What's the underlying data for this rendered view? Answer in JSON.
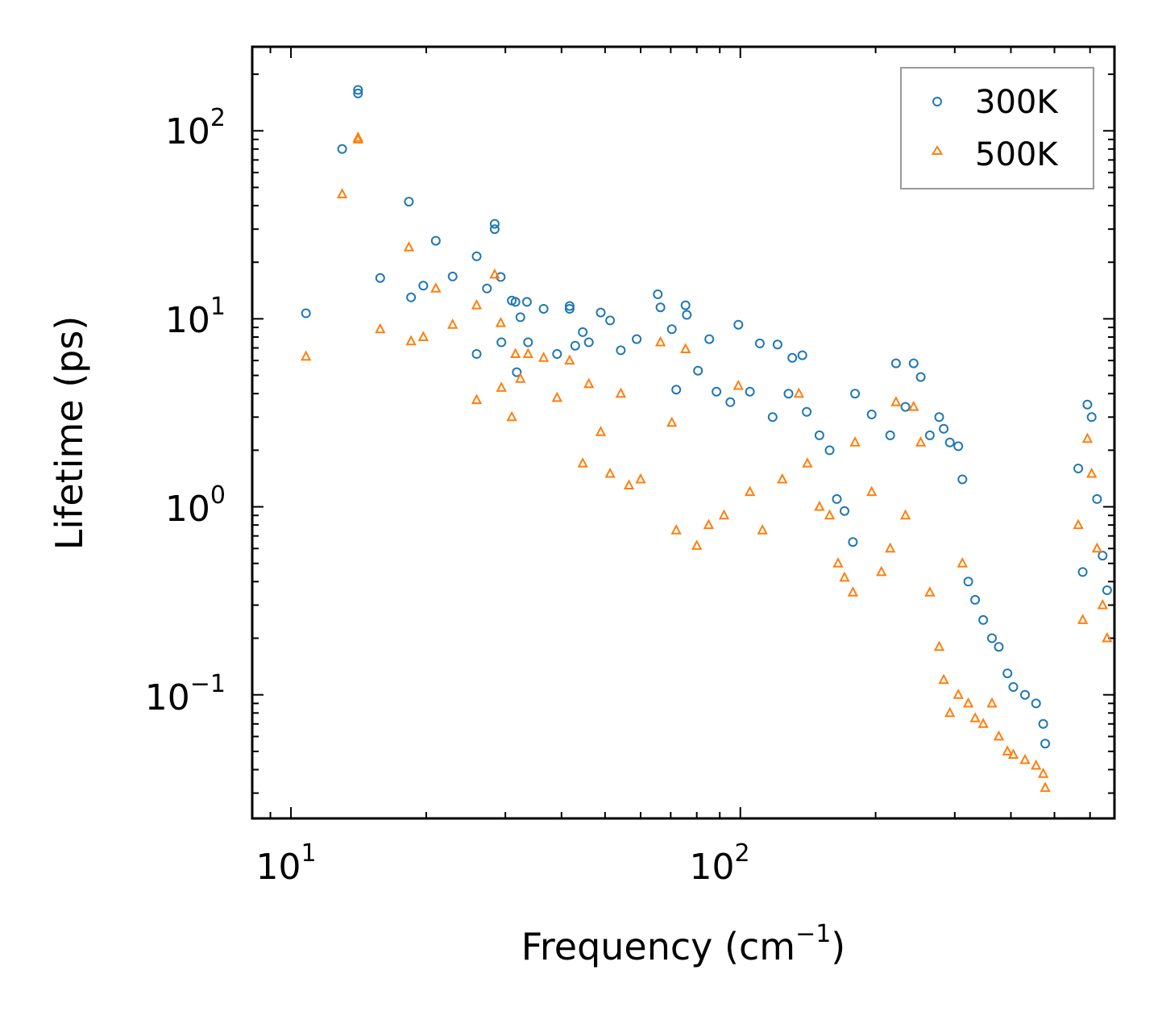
{
  "chart_data": {
    "type": "scatter",
    "title": "",
    "xlabel": "Frequency (cm",
    "xlabel_sup": "−1",
    "xlabel_tail": ")",
    "ylabel": "Lifetime (ps)",
    "xscale": "log",
    "yscale": "log",
    "xlim": [
      8.2,
      680
    ],
    "ylim": [
      0.022,
      280
    ],
    "x_ticks": [
      {
        "base": "10",
        "exp": "1",
        "value": 10
      },
      {
        "base": "10",
        "exp": "2",
        "value": 100
      }
    ],
    "y_ticks": [
      {
        "base": "10",
        "exp": "2",
        "value": 100
      },
      {
        "base": "10",
        "exp": "1",
        "value": 10
      },
      {
        "base": "10",
        "exp": "0",
        "value": 1
      },
      {
        "base": "10",
        "exp": "−1",
        "value": 0.1
      }
    ],
    "legend_position": "top-right",
    "series": [
      {
        "name": "300K",
        "marker": "circle",
        "color": "#1f77b4",
        "points": [
          [
            10.8,
            10.7
          ],
          [
            13.0,
            80
          ],
          [
            14.1,
            165
          ],
          [
            14.1,
            158
          ],
          [
            15.8,
            16.5
          ],
          [
            18.3,
            42
          ],
          [
            18.5,
            13.0
          ],
          [
            19.7,
            15.0
          ],
          [
            21.0,
            26
          ],
          [
            22.9,
            16.8
          ],
          [
            25.9,
            21.5
          ],
          [
            25.9,
            6.5
          ],
          [
            27.3,
            14.5
          ],
          [
            28.4,
            32
          ],
          [
            28.4,
            30
          ],
          [
            29.3,
            16.7
          ],
          [
            29.4,
            7.5
          ],
          [
            31.0,
            12.5
          ],
          [
            31.6,
            12.3
          ],
          [
            32.4,
            10.2
          ],
          [
            33.5,
            12.3
          ],
          [
            33.7,
            7.5
          ],
          [
            31.8,
            5.2
          ],
          [
            36.5,
            11.3
          ],
          [
            39.1,
            6.5
          ],
          [
            41.7,
            11.7
          ],
          [
            41.7,
            11.3
          ],
          [
            42.9,
            7.2
          ],
          [
            44.6,
            8.5
          ],
          [
            46.0,
            7.5
          ],
          [
            48.9,
            10.8
          ],
          [
            51.3,
            9.8
          ],
          [
            54.2,
            6.8
          ],
          [
            58.8,
            7.8
          ],
          [
            65.5,
            13.5
          ],
          [
            66.4,
            11.5
          ],
          [
            70.4,
            8.8
          ],
          [
            75.5,
            11.8
          ],
          [
            76.0,
            10.5
          ],
          [
            85.3,
            7.8
          ],
          [
            99.0,
            9.3
          ],
          [
            110.5,
            7.4
          ],
          [
            121.0,
            7.3
          ],
          [
            130.5,
            6.2
          ],
          [
            137.4,
            6.4
          ],
          [
            72.0,
            4.2
          ],
          [
            80.5,
            5.3
          ],
          [
            88.5,
            4.1
          ],
          [
            95.0,
            3.6
          ],
          [
            105.0,
            4.1
          ],
          [
            118.0,
            3.0
          ],
          [
            128.0,
            4.0
          ],
          [
            140.5,
            3.2
          ],
          [
            150.0,
            2.4
          ],
          [
            158.0,
            2.0
          ],
          [
            164.0,
            1.1
          ],
          [
            170.5,
            0.95
          ],
          [
            178.0,
            0.65
          ],
          [
            180.0,
            4.0
          ],
          [
            196.0,
            3.1
          ],
          [
            215.5,
            2.4
          ],
          [
            222.0,
            5.8
          ],
          [
            233.0,
            3.4
          ],
          [
            243.0,
            5.8
          ],
          [
            252.0,
            4.9
          ],
          [
            264.0,
            2.4
          ],
          [
            277.0,
            3.0
          ],
          [
            283.5,
            2.6
          ],
          [
            292.5,
            2.2
          ],
          [
            305.5,
            2.1
          ],
          [
            312.0,
            1.4
          ],
          [
            321.5,
            0.4
          ],
          [
            333.0,
            0.32
          ],
          [
            347.0,
            0.25
          ],
          [
            363.0,
            0.2
          ],
          [
            376.0,
            0.18
          ],
          [
            393.0,
            0.13
          ],
          [
            405.0,
            0.11
          ],
          [
            430.0,
            0.1
          ],
          [
            455.0,
            0.09
          ],
          [
            472.0,
            0.07
          ],
          [
            477.0,
            0.055
          ],
          [
            565.0,
            1.6
          ],
          [
            578.0,
            0.45
          ],
          [
            592.0,
            3.5
          ],
          [
            605.0,
            3.0
          ],
          [
            622.0,
            1.1
          ],
          [
            640.0,
            0.55
          ],
          [
            655.0,
            0.36
          ]
        ]
      },
      {
        "name": "500K",
        "marker": "triangle",
        "color": "#ff7f0e",
        "points": [
          [
            10.8,
            6.3
          ],
          [
            13.0,
            46
          ],
          [
            14.1,
            92
          ],
          [
            14.1,
            90
          ],
          [
            15.8,
            8.8
          ],
          [
            18.3,
            24
          ],
          [
            18.5,
            7.6
          ],
          [
            19.7,
            8.0
          ],
          [
            21.0,
            14.5
          ],
          [
            22.9,
            9.3
          ],
          [
            25.9,
            11.8
          ],
          [
            25.9,
            3.7
          ],
          [
            28.4,
            17.2
          ],
          [
            29.3,
            9.5
          ],
          [
            29.4,
            4.3
          ],
          [
            31.0,
            3.0
          ],
          [
            31.6,
            6.5
          ],
          [
            32.4,
            4.8
          ],
          [
            33.7,
            6.5
          ],
          [
            36.5,
            6.2
          ],
          [
            39.1,
            3.8
          ],
          [
            41.7,
            6.0
          ],
          [
            44.6,
            1.7
          ],
          [
            46.0,
            4.5
          ],
          [
            48.9,
            2.5
          ],
          [
            51.3,
            1.5
          ],
          [
            54.2,
            4.0
          ],
          [
            56.5,
            1.3
          ],
          [
            60.0,
            1.4
          ],
          [
            66.4,
            7.5
          ],
          [
            70.4,
            2.8
          ],
          [
            72.0,
            0.75
          ],
          [
            75.5,
            6.9
          ],
          [
            80.0,
            0.62
          ],
          [
            85.0,
            0.8
          ],
          [
            92.0,
            0.9
          ],
          [
            99.0,
            4.4
          ],
          [
            105.0,
            1.2
          ],
          [
            112.0,
            0.75
          ],
          [
            124.0,
            1.4
          ],
          [
            135.0,
            4.0
          ],
          [
            141.0,
            1.7
          ],
          [
            150.0,
            1.0
          ],
          [
            158.0,
            0.9
          ],
          [
            165.0,
            0.5
          ],
          [
            170.5,
            0.42
          ],
          [
            178.0,
            0.35
          ],
          [
            180.0,
            2.2
          ],
          [
            196.0,
            1.2
          ],
          [
            206.0,
            0.45
          ],
          [
            215.5,
            0.6
          ],
          [
            222.0,
            3.6
          ],
          [
            233.0,
            0.9
          ],
          [
            243.0,
            3.4
          ],
          [
            252.0,
            2.2
          ],
          [
            264.0,
            0.35
          ],
          [
            277.0,
            0.18
          ],
          [
            283.5,
            0.12
          ],
          [
            292.5,
            0.08
          ],
          [
            305.5,
            0.1
          ],
          [
            312.0,
            0.5
          ],
          [
            321.5,
            0.09
          ],
          [
            333.0,
            0.075
          ],
          [
            347.0,
            0.07
          ],
          [
            363.0,
            0.09
          ],
          [
            376.0,
            0.06
          ],
          [
            393.0,
            0.05
          ],
          [
            405.0,
            0.048
          ],
          [
            430.0,
            0.045
          ],
          [
            455.0,
            0.042
          ],
          [
            472.0,
            0.038
          ],
          [
            477.0,
            0.032
          ],
          [
            565.0,
            0.8
          ],
          [
            578.0,
            0.25
          ],
          [
            592.0,
            2.3
          ],
          [
            605.0,
            1.5
          ],
          [
            622.0,
            0.6
          ],
          [
            640.0,
            0.3
          ],
          [
            655.0,
            0.2
          ]
        ]
      }
    ]
  }
}
